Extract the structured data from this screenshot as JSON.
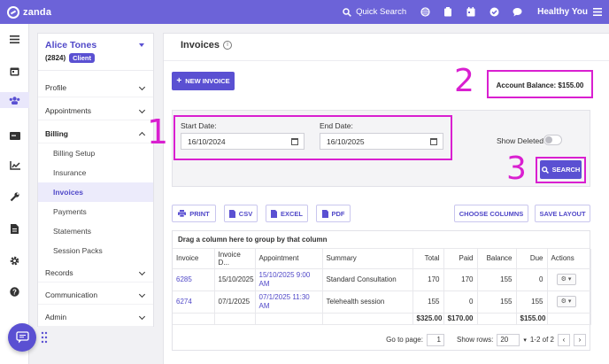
{
  "topbar": {
    "brand": "zanda",
    "search_label": "Quick Search",
    "user": "Healthy You"
  },
  "rail_icons": [
    "menu-icon",
    "calendar-icon",
    "clients-icon",
    "billing-card-icon",
    "chart-icon",
    "wrench-icon",
    "document-icon",
    "settings-icon",
    "help-icon"
  ],
  "client": {
    "name": "Alice Tones",
    "id": "(2824)",
    "badge": "Client"
  },
  "nav": {
    "profile": "Profile",
    "appointments": "Appointments",
    "billing": "Billing",
    "billing_setup": "Billing Setup",
    "insurance": "Insurance",
    "invoices": "Invoices",
    "payments": "Payments",
    "statements": "Statements",
    "session_packs": "Session Packs",
    "records": "Records",
    "communication": "Communication",
    "admin": "Admin"
  },
  "page": {
    "title": "Invoices",
    "new_invoice": "NEW INVOICE",
    "account_balance": "Account Balance: $155.00"
  },
  "annotations": [
    "1",
    "2",
    "3"
  ],
  "filters": {
    "start_label": "Start Date:",
    "start_value": "16/10/2024",
    "end_label": "End Date:",
    "end_value": "16/10/2025",
    "show_deleted": "Show Deleted",
    "show_deleted_on": false,
    "search": "SEARCH"
  },
  "toolbar": {
    "print": "PRINT",
    "csv": "CSV",
    "excel": "EXCEL",
    "pdf": "PDF",
    "choose_columns": "CHOOSE COLUMNS",
    "save_layout": "SAVE LAYOUT"
  },
  "grid": {
    "group_hint": "Drag a column here to group by that column",
    "columns": [
      "Invoice",
      "Invoice D...",
      "Appointment",
      "Summary",
      "Total",
      "Paid",
      "Balance",
      "Due",
      "Actions"
    ],
    "rows": [
      {
        "invoice": "6285",
        "date": "15/10/2025",
        "appointment": "15/10/2025 9:00 AM",
        "summary": "Standard Consultation",
        "total": "170",
        "paid": "170",
        "balance": "155",
        "due": "0"
      },
      {
        "invoice": "6274",
        "date": "07/1/2025",
        "appointment": "07/1/2025 11:30 AM",
        "summary": "Telehealth session",
        "total": "155",
        "paid": "0",
        "balance": "155",
        "due": "155"
      }
    ],
    "totals": {
      "total": "$325.00",
      "paid": "$170.00",
      "due": "$155.00"
    }
  },
  "pager": {
    "go_to_label": "Go to page:",
    "page": "1",
    "rows_label": "Show rows:",
    "rows": "20",
    "range": "1-2 of 2"
  },
  "colors": {
    "brand": "#6c63d8",
    "accent": "#5a50d2",
    "annotation": "#d91fd0"
  }
}
